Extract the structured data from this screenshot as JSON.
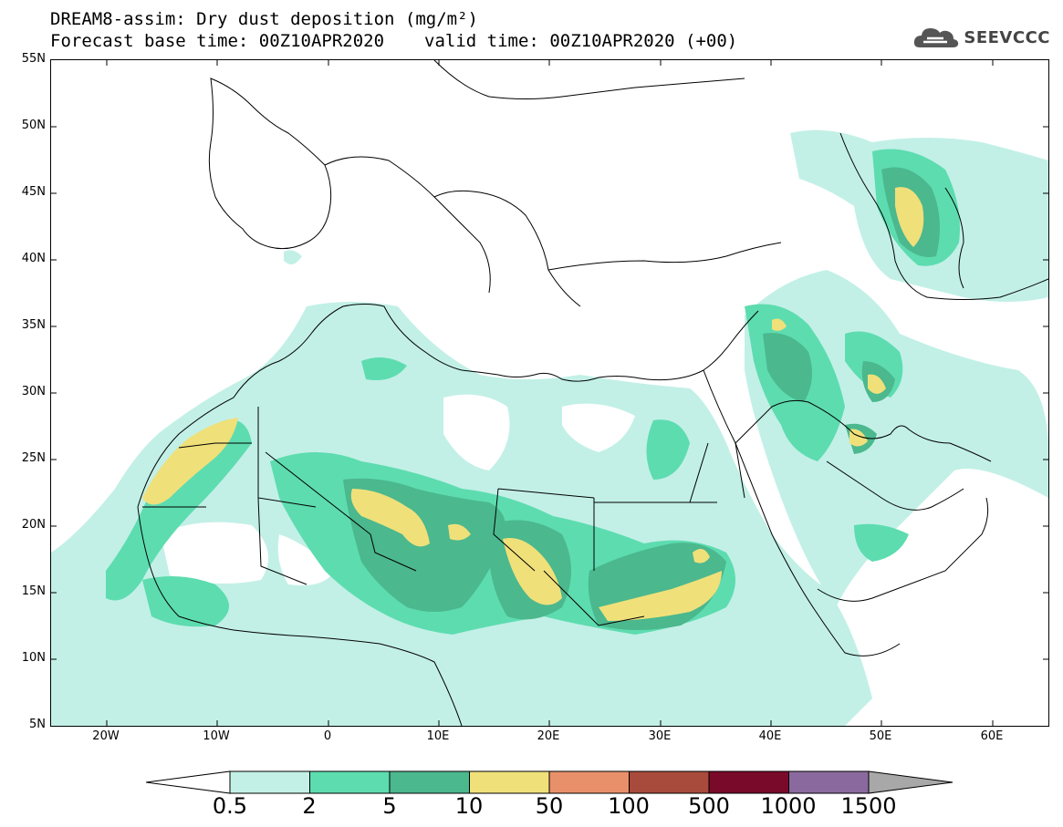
{
  "title": {
    "line1": "DREAM8-assim: Dry dust deposition (mg/m²)",
    "base_time": "Forecast base time: 00Z10APR2020",
    "valid_time": "valid time: 00Z10APR2020 (+00)"
  },
  "logo": {
    "text": "SEEVCCC",
    "icon": "cloud-icon"
  },
  "map": {
    "lat_labels": [
      "55N",
      "50N",
      "45N",
      "40N",
      "35N",
      "30N",
      "25N",
      "20N",
      "15N",
      "10N",
      "5N"
    ],
    "lon_labels": [
      "20W",
      "10W",
      "0",
      "10E",
      "20E",
      "30E",
      "40E",
      "50E",
      "60E"
    ],
    "lat_range": [
      5,
      55
    ],
    "lon_range": [
      -25,
      65
    ],
    "colors": {
      "land_outline": "#000000",
      "level_0_5": "#c2f0e6",
      "level_2": "#5ddcb0",
      "level_5": "#4bb88e",
      "level_10": "#f0e07a"
    }
  },
  "colorbar": {
    "labels": [
      "0.5",
      "2",
      "5",
      "10",
      "50",
      "100",
      "500",
      "1000",
      "1500"
    ],
    "colors": [
      "#c2f0e6",
      "#5ddcb0",
      "#4bb88e",
      "#f0e07a",
      "#e8906a",
      "#a84a3c",
      "#7a0a2a",
      "#8a6a9e",
      "#a8a8a8"
    ]
  }
}
